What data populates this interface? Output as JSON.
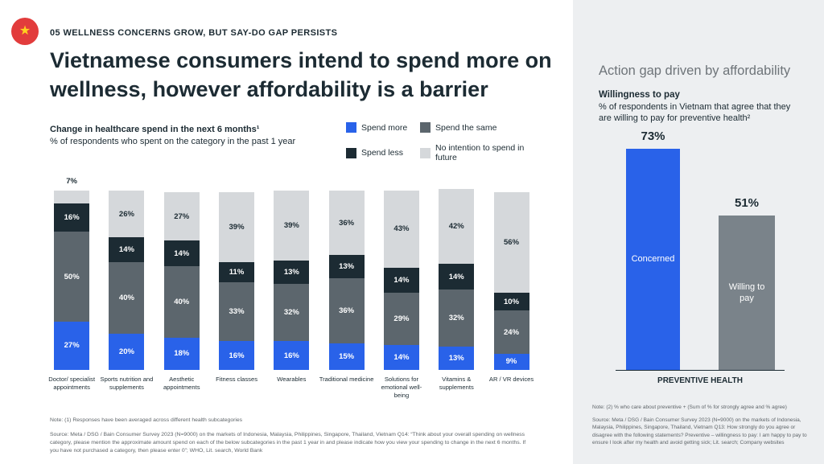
{
  "page": {
    "eyebrow": "05 WELLNESS CONCERNS GROW, BUT SAY-DO GAP PERSISTS",
    "headline": "Vietnamese consumers intend to spend more on wellness, however affordability is a barrier",
    "flag_star": "★"
  },
  "left_chart": {
    "title": "Change in healthcare spend in the next 6 months¹",
    "subtitle": "% of respondents who spent on the category in the past 1 year",
    "note": "Note: (1) Responses have been averaged across different health subcategories",
    "source": "Source: Meta / DSG / Bain Consumer Survey 2023 (N=9000) on the markets of Indonesia, Malaysia, Philippines, Singapore, Thailand, Vietnam Q14: “Think about your overall spending on wellness category, please mention the approximate amount spend on each of the below subcategories in the past 1 year in and please indicate how you view your spending to change in the next 6 months. If you have not purchased a category, then please enter 0”; WHO, Lit. search, World Bank"
  },
  "right_panel": {
    "heading": "Action gap driven by affordability",
    "willingness_title": "Willingness to pay",
    "willingness_subtitle": "% of respondents in Vietnam that agree that they are willing to pay for preventive health²",
    "note": "Note: (2) % who care about preventive + (Sum of % for strongly agree and % agree)",
    "source": "Source: Meta / DSG / Bain Consumer Survey 2023 (N=9000) on the markets of Indonesia, Malaysia, Philippines, Singapore, Thailand, Vietnam Q13: How strongly do you agree or disagree with the following statements? Preventive – willingness to pay: I am happy to pay to ensure I look after my health and avoid getting sick; Lit. search; Company websites"
  },
  "chart_data": [
    {
      "type": "bar",
      "stacked": true,
      "title": "Change in healthcare spend in the next 6 months",
      "ylabel": "% of respondents",
      "ylim": [
        0,
        100
      ],
      "categories": [
        "Doctor/ specialist appointments",
        "Sports nutrition and supplements",
        "Aesthetic appointments",
        "Fitness classes",
        "Wearables",
        "Traditional medicine",
        "Solutions for emotional well-being",
        "Vitamins & supplements",
        "AR / VR devices"
      ],
      "series": [
        {
          "name": "Spend more",
          "color": "#2962e9",
          "label_color": "#ffffff",
          "values": [
            27,
            20,
            18,
            16,
            16,
            15,
            14,
            13,
            9
          ]
        },
        {
          "name": "Spend the same",
          "color": "#5c666d",
          "label_color": "#ffffff",
          "values": [
            50,
            40,
            40,
            33,
            32,
            36,
            29,
            32,
            24
          ]
        },
        {
          "name": "Spend less",
          "color": "#1c2b33",
          "label_color": "#ffffff",
          "values": [
            16,
            14,
            14,
            11,
            13,
            13,
            14,
            14,
            10
          ]
        },
        {
          "name": "No intention to spend in future",
          "color": "#d5d8db",
          "label_color": "#1c2b33",
          "values": [
            7,
            26,
            27,
            39,
            39,
            36,
            43,
            42,
            56
          ]
        }
      ],
      "legend_position": "top-right"
    },
    {
      "type": "bar",
      "title": "Willingness to pay",
      "categories": [
        "Concerned",
        "Willing to pay"
      ],
      "values": [
        73,
        51
      ],
      "colors": [
        "#2962e9",
        "#7a838a"
      ],
      "xlabel": "PREVENTIVE HEALTH",
      "ylim": [
        0,
        100
      ]
    }
  ]
}
